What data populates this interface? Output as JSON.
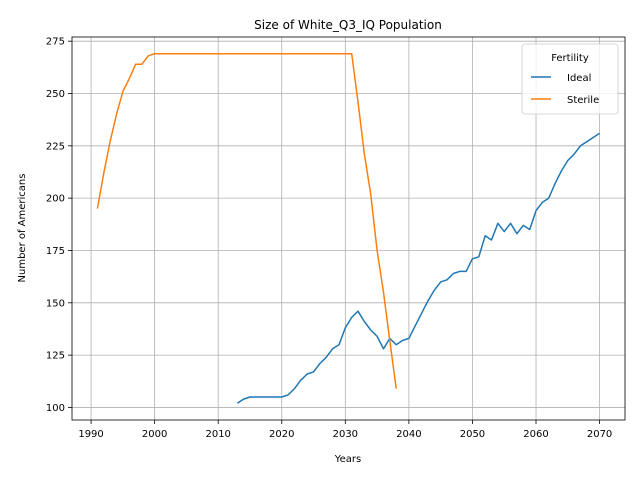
{
  "chart_data": {
    "type": "line",
    "title": "Size of White_Q3_IQ Population",
    "xlabel": "Years",
    "ylabel": "Number of Americans",
    "xlim": [
      1987,
      2074
    ],
    "ylim": [
      94,
      277
    ],
    "xticks": [
      1990,
      2000,
      2010,
      2020,
      2030,
      2040,
      2050,
      2060,
      2070
    ],
    "yticks": [
      100,
      125,
      150,
      175,
      200,
      225,
      250,
      275
    ],
    "grid": true,
    "legend": {
      "title": "Fertility",
      "placement": "top-right"
    },
    "series": [
      {
        "name": "Ideal",
        "color": "#1f77b4",
        "x": [
          2013,
          2014,
          2015,
          2016,
          2017,
          2018,
          2019,
          2020,
          2021,
          2022,
          2023,
          2024,
          2025,
          2026,
          2027,
          2028,
          2029,
          2030,
          2031,
          2032,
          2033,
          2034,
          2035,
          2036,
          2037,
          2038,
          2039,
          2040,
          2041,
          2042,
          2043,
          2044,
          2045,
          2046,
          2047,
          2048,
          2049,
          2050,
          2051,
          2052,
          2053,
          2054,
          2055,
          2056,
          2057,
          2058,
          2059,
          2060,
          2061,
          2062,
          2063,
          2064,
          2065,
          2066,
          2067,
          2068,
          2069,
          2070
        ],
        "y": [
          102,
          104,
          105,
          105,
          105,
          105,
          105,
          105,
          106,
          109,
          113,
          116,
          117,
          121,
          124,
          128,
          130,
          138,
          143,
          146,
          141,
          137,
          134,
          128,
          133,
          130,
          132,
          133,
          139,
          145,
          151,
          156,
          160,
          161,
          164,
          165,
          165,
          171,
          172,
          182,
          180,
          188,
          184,
          188,
          183,
          187,
          185,
          194,
          198,
          200,
          207,
          213,
          218,
          221,
          225,
          227,
          229,
          231
        ]
      },
      {
        "name": "Sterile",
        "color": "#ff7f0e",
        "x": [
          1991,
          1992,
          1993,
          1994,
          1995,
          1996,
          1997,
          1998,
          1999,
          2000,
          2001,
          2005,
          2010,
          2015,
          2020,
          2025,
          2030,
          2031,
          2032,
          2033,
          2034,
          2035,
          2036,
          2037,
          2038
        ],
        "y": [
          195,
          212,
          227,
          240,
          251,
          257,
          264,
          264,
          268,
          269,
          269,
          269,
          269,
          269,
          269,
          269,
          269,
          269,
          246,
          221,
          202,
          175,
          155,
          132,
          109
        ]
      }
    ]
  }
}
